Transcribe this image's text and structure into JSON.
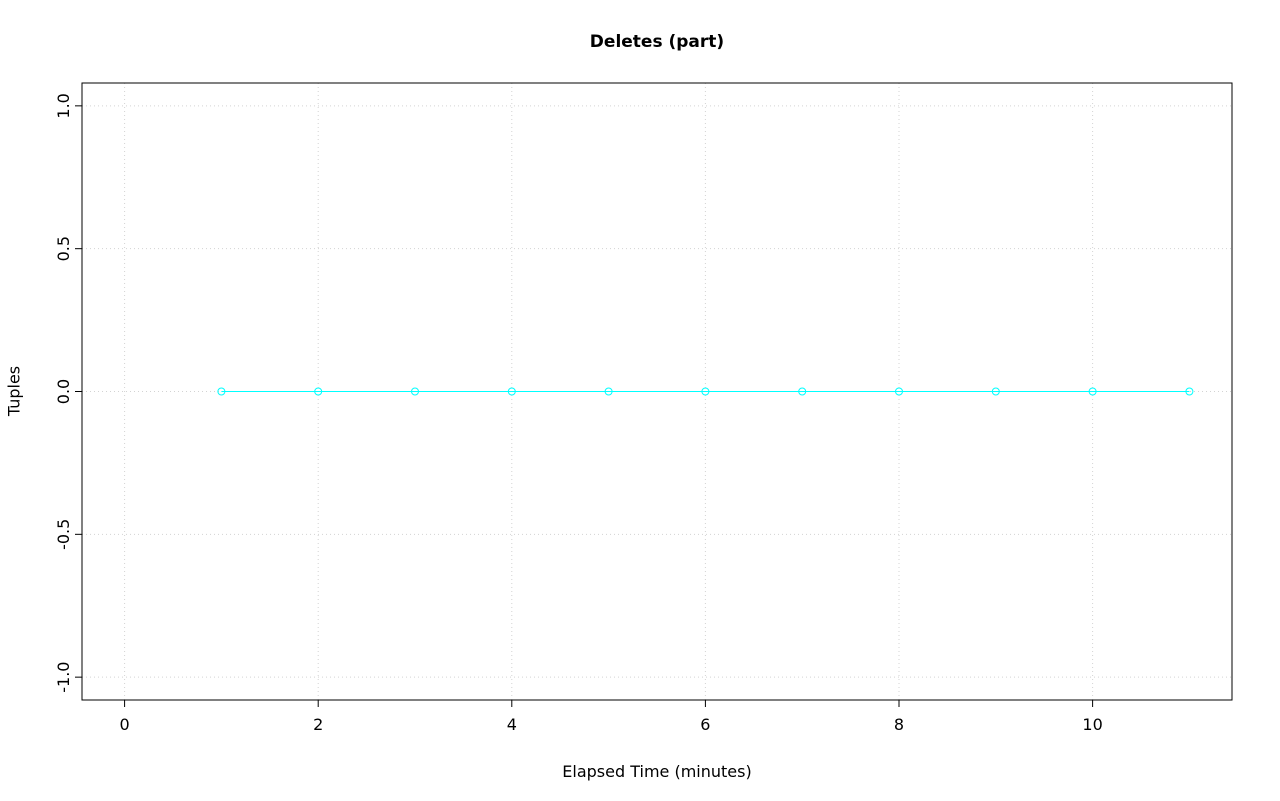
{
  "chart_data": {
    "type": "line",
    "title": "Deletes (part)",
    "xlabel": "Elapsed Time (minutes)",
    "ylabel": "Tuples",
    "x": [
      1,
      2,
      3,
      4,
      5,
      6,
      7,
      8,
      9,
      10,
      11
    ],
    "y": [
      0,
      0,
      0,
      0,
      0,
      0,
      0,
      0,
      0,
      0,
      0
    ],
    "series": [
      {
        "name": "Deletes (part)",
        "x": [
          1,
          2,
          3,
          4,
          5,
          6,
          7,
          8,
          9,
          10,
          11
        ],
        "y": [
          0,
          0,
          0,
          0,
          0,
          0,
          0,
          0,
          0,
          0,
          0
        ]
      }
    ],
    "xlim": [
      -0.44,
      11.44
    ],
    "ylim": [
      -1.08,
      1.08
    ],
    "x_ticks": [
      0,
      2,
      4,
      6,
      8,
      10
    ],
    "x_tick_labels": [
      "0",
      "2",
      "4",
      "6",
      "8",
      "10"
    ],
    "y_ticks": [
      -1.0,
      -0.5,
      0.0,
      0.5,
      1.0
    ],
    "y_tick_labels": [
      "-1.0",
      "-0.5",
      "0.0",
      "0.5",
      "1.0"
    ],
    "grid": true,
    "grid_style": "dotted",
    "marker": "open-circle",
    "legend_position": "none",
    "colors": {
      "series": "#00FFFF",
      "grid": "#D3D3D3",
      "axis": "#000000",
      "background": "#FFFFFF"
    }
  }
}
